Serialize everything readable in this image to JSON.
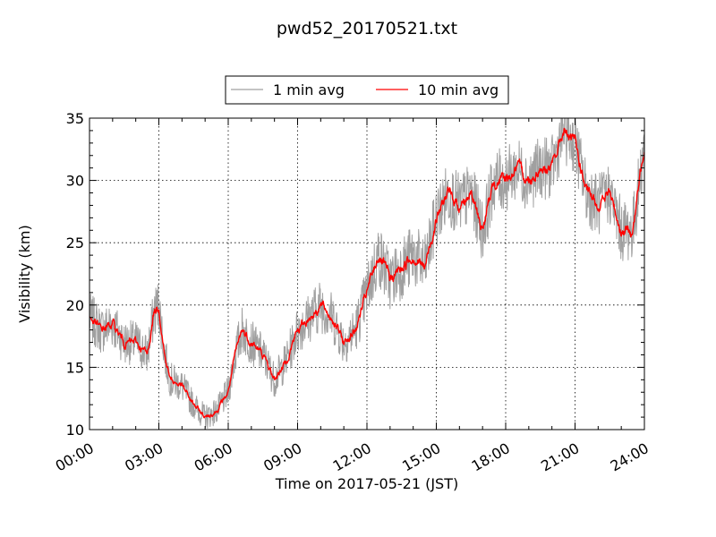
{
  "chart_data": {
    "type": "line",
    "title": "pwd52_20170521.txt",
    "xlabel": "Time on 2017-05-21 (JST)",
    "ylabel": "Visibility (km)",
    "xlim": [
      0,
      24
    ],
    "ylim": [
      10,
      35
    ],
    "x_unit": "hours",
    "x_tick_labels": [
      "00:00",
      "03:00",
      "06:00",
      "09:00",
      "12:00",
      "15:00",
      "18:00",
      "21:00",
      "24:00"
    ],
    "y_tick_labels": [
      "10",
      "15",
      "20",
      "25",
      "30",
      "35"
    ],
    "grid": true,
    "legend": {
      "location": "top-center",
      "entries": [
        "1 min avg",
        "10 min avg"
      ]
    },
    "series": [
      {
        "name": "1 min avg",
        "color": "#a0a0a0",
        "x": [
          0,
          0.5,
          1,
          1.5,
          2,
          2.5,
          2.8,
          3,
          3.25,
          3.5,
          4,
          4.5,
          5,
          5.5,
          6,
          6.3,
          6.6,
          7,
          7.5,
          8,
          8.5,
          9,
          9.5,
          10,
          10.5,
          11,
          11.5,
          12,
          12.5,
          13,
          13.5,
          14,
          14.5,
          15,
          15.5,
          16,
          16.5,
          17,
          17.5,
          18,
          18.5,
          19,
          19.5,
          20,
          20.5,
          21,
          21.5,
          22,
          22.5,
          23,
          23.5,
          24
        ],
        "y": [
          19,
          18,
          18.5,
          17,
          17,
          16,
          19.5,
          20,
          16,
          14,
          13.5,
          12,
          11,
          11.5,
          13,
          16,
          18,
          17,
          16,
          14,
          15.5,
          18,
          19,
          20,
          19,
          17,
          18,
          21,
          24,
          22,
          23,
          24,
          23,
          27,
          29,
          28,
          29,
          26,
          30,
          30,
          31,
          30,
          31,
          31,
          34,
          33,
          29,
          28,
          29,
          26,
          26,
          33
        ],
        "noise": 1.6
      },
      {
        "name": "10 min avg",
        "color": "#ff0000",
        "x": [
          0,
          0.5,
          1,
          1.5,
          2,
          2.5,
          2.8,
          3,
          3.25,
          3.5,
          4,
          4.5,
          5,
          5.5,
          6,
          6.3,
          6.6,
          7,
          7.5,
          8,
          8.5,
          9,
          9.5,
          10,
          10.5,
          11,
          11.5,
          12,
          12.5,
          13,
          13.5,
          14,
          14.5,
          15,
          15.5,
          16,
          16.5,
          17,
          17.5,
          18,
          18.5,
          19,
          19.5,
          20,
          20.5,
          21,
          21.5,
          22,
          22.5,
          23,
          23.5,
          24
        ],
        "y": [
          19,
          18,
          18.5,
          17,
          17,
          16,
          19.5,
          20,
          16,
          14,
          13.5,
          12,
          11,
          11.5,
          13,
          16,
          18,
          17,
          16,
          14,
          15.5,
          18,
          19,
          20,
          19,
          17,
          18,
          21,
          24,
          22,
          23,
          24,
          23,
          27,
          29,
          28,
          29,
          26,
          30,
          30,
          31,
          30,
          31,
          31,
          34,
          33,
          29,
          28,
          29,
          26,
          26,
          33
        ],
        "noise": 0.5
      }
    ]
  }
}
